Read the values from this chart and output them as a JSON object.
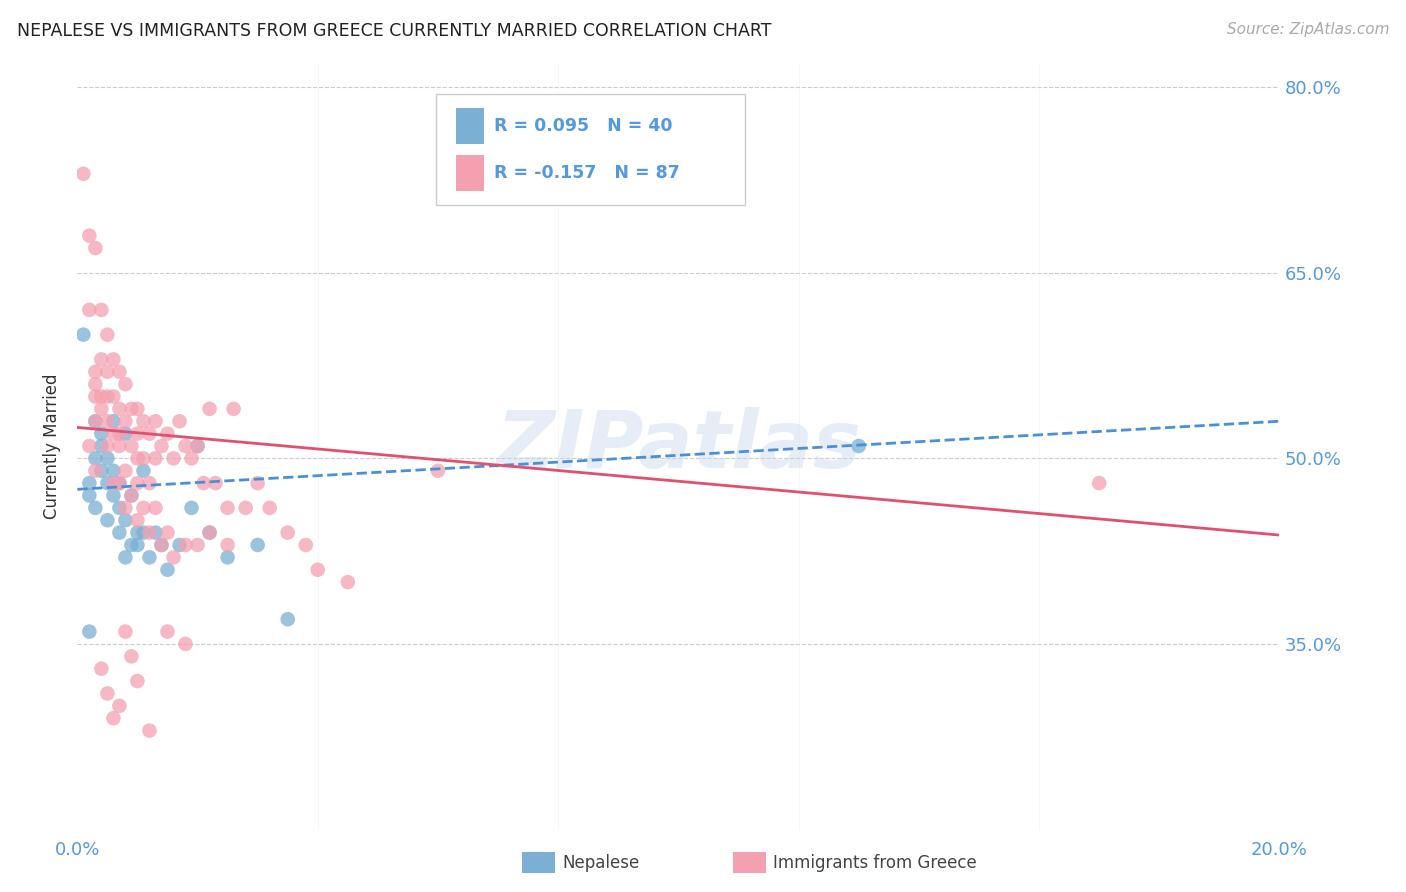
{
  "title": "NEPALESE VS IMMIGRANTS FROM GREECE CURRENTLY MARRIED CORRELATION CHART",
  "source": "Source: ZipAtlas.com",
  "ylabel": "Currently Married",
  "legend_label_blue": "Nepalese",
  "legend_label_pink": "Immigrants from Greece",
  "R_blue": 0.095,
  "N_blue": 40,
  "R_pink": -0.157,
  "N_pink": 87,
  "xlim": [
    0.0,
    0.2
  ],
  "ylim": [
    0.2,
    0.82
  ],
  "yticks": [
    0.35,
    0.5,
    0.65,
    0.8
  ],
  "ytick_labels": [
    "35.0%",
    "50.0%",
    "65.0%",
    "80.0%"
  ],
  "xticks": [
    0.0,
    0.04,
    0.08,
    0.12,
    0.16,
    0.2
  ],
  "grid_color": "#cccccc",
  "background_color": "#ffffff",
  "blue_color": "#7bafd4",
  "pink_color": "#f4a0b0",
  "line_blue_color": "#4a90d9",
  "line_pink_color": "#e05070",
  "tick_label_color": "#5599dd",
  "watermark": "ZIPatlas",
  "blue_x": [
    0.001,
    0.002,
    0.002,
    0.003,
    0.003,
    0.003,
    0.004,
    0.004,
    0.004,
    0.005,
    0.005,
    0.005,
    0.006,
    0.006,
    0.006,
    0.007,
    0.007,
    0.007,
    0.008,
    0.008,
    0.008,
    0.009,
    0.009,
    0.01,
    0.01,
    0.011,
    0.011,
    0.012,
    0.013,
    0.014,
    0.015,
    0.017,
    0.019,
    0.02,
    0.022,
    0.025,
    0.03,
    0.035,
    0.13,
    0.002
  ],
  "blue_y": [
    0.6,
    0.47,
    0.48,
    0.5,
    0.53,
    0.46,
    0.51,
    0.49,
    0.52,
    0.5,
    0.48,
    0.45,
    0.49,
    0.47,
    0.53,
    0.48,
    0.44,
    0.46,
    0.52,
    0.45,
    0.42,
    0.43,
    0.47,
    0.44,
    0.43,
    0.49,
    0.44,
    0.42,
    0.44,
    0.43,
    0.41,
    0.43,
    0.46,
    0.51,
    0.44,
    0.42,
    0.43,
    0.37,
    0.51,
    0.36
  ],
  "pink_x": [
    0.001,
    0.002,
    0.002,
    0.003,
    0.003,
    0.003,
    0.003,
    0.004,
    0.004,
    0.004,
    0.005,
    0.005,
    0.005,
    0.006,
    0.006,
    0.007,
    0.007,
    0.007,
    0.008,
    0.008,
    0.009,
    0.009,
    0.01,
    0.01,
    0.01,
    0.011,
    0.011,
    0.012,
    0.012,
    0.013,
    0.013,
    0.014,
    0.015,
    0.016,
    0.017,
    0.018,
    0.019,
    0.02,
    0.021,
    0.022,
    0.023,
    0.025,
    0.026,
    0.028,
    0.03,
    0.032,
    0.035,
    0.038,
    0.04,
    0.045,
    0.002,
    0.003,
    0.003,
    0.004,
    0.005,
    0.005,
    0.006,
    0.006,
    0.007,
    0.007,
    0.008,
    0.008,
    0.009,
    0.01,
    0.01,
    0.011,
    0.012,
    0.013,
    0.014,
    0.015,
    0.016,
    0.018,
    0.02,
    0.022,
    0.025,
    0.06,
    0.17,
    0.004,
    0.005,
    0.006,
    0.007,
    0.008,
    0.009,
    0.01,
    0.012,
    0.015,
    0.018
  ],
  "pink_y": [
    0.73,
    0.68,
    0.62,
    0.67,
    0.57,
    0.55,
    0.53,
    0.62,
    0.58,
    0.55,
    0.6,
    0.57,
    0.53,
    0.58,
    0.55,
    0.57,
    0.54,
    0.52,
    0.56,
    0.53,
    0.54,
    0.51,
    0.52,
    0.54,
    0.5,
    0.53,
    0.5,
    0.52,
    0.48,
    0.53,
    0.5,
    0.51,
    0.52,
    0.5,
    0.53,
    0.51,
    0.5,
    0.51,
    0.48,
    0.54,
    0.48,
    0.46,
    0.54,
    0.46,
    0.48,
    0.46,
    0.44,
    0.43,
    0.41,
    0.4,
    0.51,
    0.49,
    0.56,
    0.54,
    0.51,
    0.55,
    0.52,
    0.48,
    0.51,
    0.48,
    0.49,
    0.46,
    0.47,
    0.45,
    0.48,
    0.46,
    0.44,
    0.46,
    0.43,
    0.44,
    0.42,
    0.43,
    0.43,
    0.44,
    0.43,
    0.49,
    0.48,
    0.33,
    0.31,
    0.29,
    0.3,
    0.36,
    0.34,
    0.32,
    0.28,
    0.36,
    0.35
  ]
}
